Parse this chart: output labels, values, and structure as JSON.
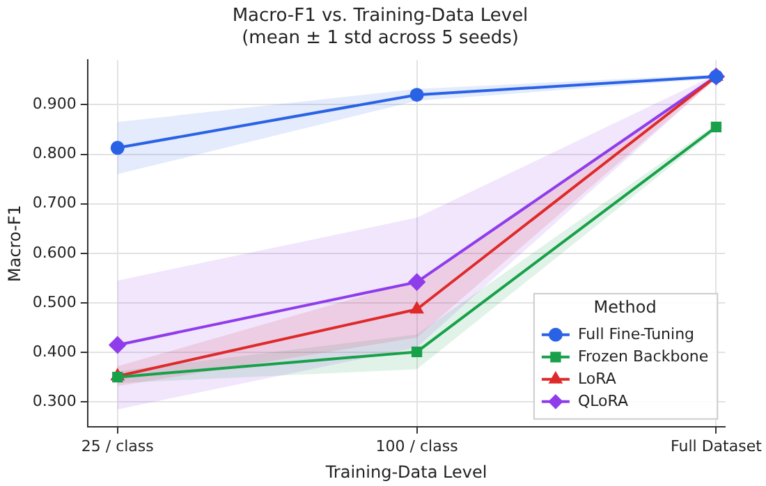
{
  "chart_data": {
    "type": "line",
    "title": "Macro-F1 vs. Training-Data Level",
    "subtitle": "(mean ± 1 std across 5 seeds)",
    "xlabel": "Training-Data Level",
    "ylabel": "Macro-F1",
    "categories": [
      "25 / class",
      "100 / class",
      "Full Dataset"
    ],
    "series": [
      {
        "name": "Full Fine-Tuning",
        "color": "#2a62e6",
        "marker": "circle",
        "values": [
          0.813,
          0.92,
          0.957
        ],
        "lower": [
          0.76,
          0.908,
          0.953
        ],
        "upper": [
          0.865,
          0.932,
          0.961
        ]
      },
      {
        "name": "Frozen Backbone",
        "color": "#18a04a",
        "marker": "square",
        "values": [
          0.35,
          0.401,
          0.855
        ],
        "lower": [
          0.338,
          0.366,
          0.849
        ],
        "upper": [
          0.362,
          0.436,
          0.861
        ]
      },
      {
        "name": "LoRA",
        "color": "#de2a2a",
        "marker": "triangle",
        "values": [
          0.352,
          0.487,
          0.957
        ],
        "lower": [
          0.332,
          0.43,
          0.953
        ],
        "upper": [
          0.372,
          0.545,
          0.961
        ]
      },
      {
        "name": "QLoRA",
        "color": "#8f3ceb",
        "marker": "diamond",
        "values": [
          0.415,
          0.542,
          0.957
        ],
        "lower": [
          0.285,
          0.41,
          0.953
        ],
        "upper": [
          0.545,
          0.672,
          0.961
        ]
      }
    ],
    "ylim": [
      0.25,
      0.99
    ],
    "yticks": [
      {
        "value": 0.3,
        "label": "0.300"
      },
      {
        "value": 0.4,
        "label": "0.400"
      },
      {
        "value": 0.5,
        "label": "0.500"
      },
      {
        "value": 0.6,
        "label": "0.600"
      },
      {
        "value": 0.7,
        "label": "0.700"
      },
      {
        "value": 0.8,
        "label": "0.800"
      },
      {
        "value": 0.9,
        "label": "0.900"
      }
    ],
    "grid": true,
    "legend": "bottom right",
    "legend_title": "Method",
    "line_style": "solid"
  }
}
